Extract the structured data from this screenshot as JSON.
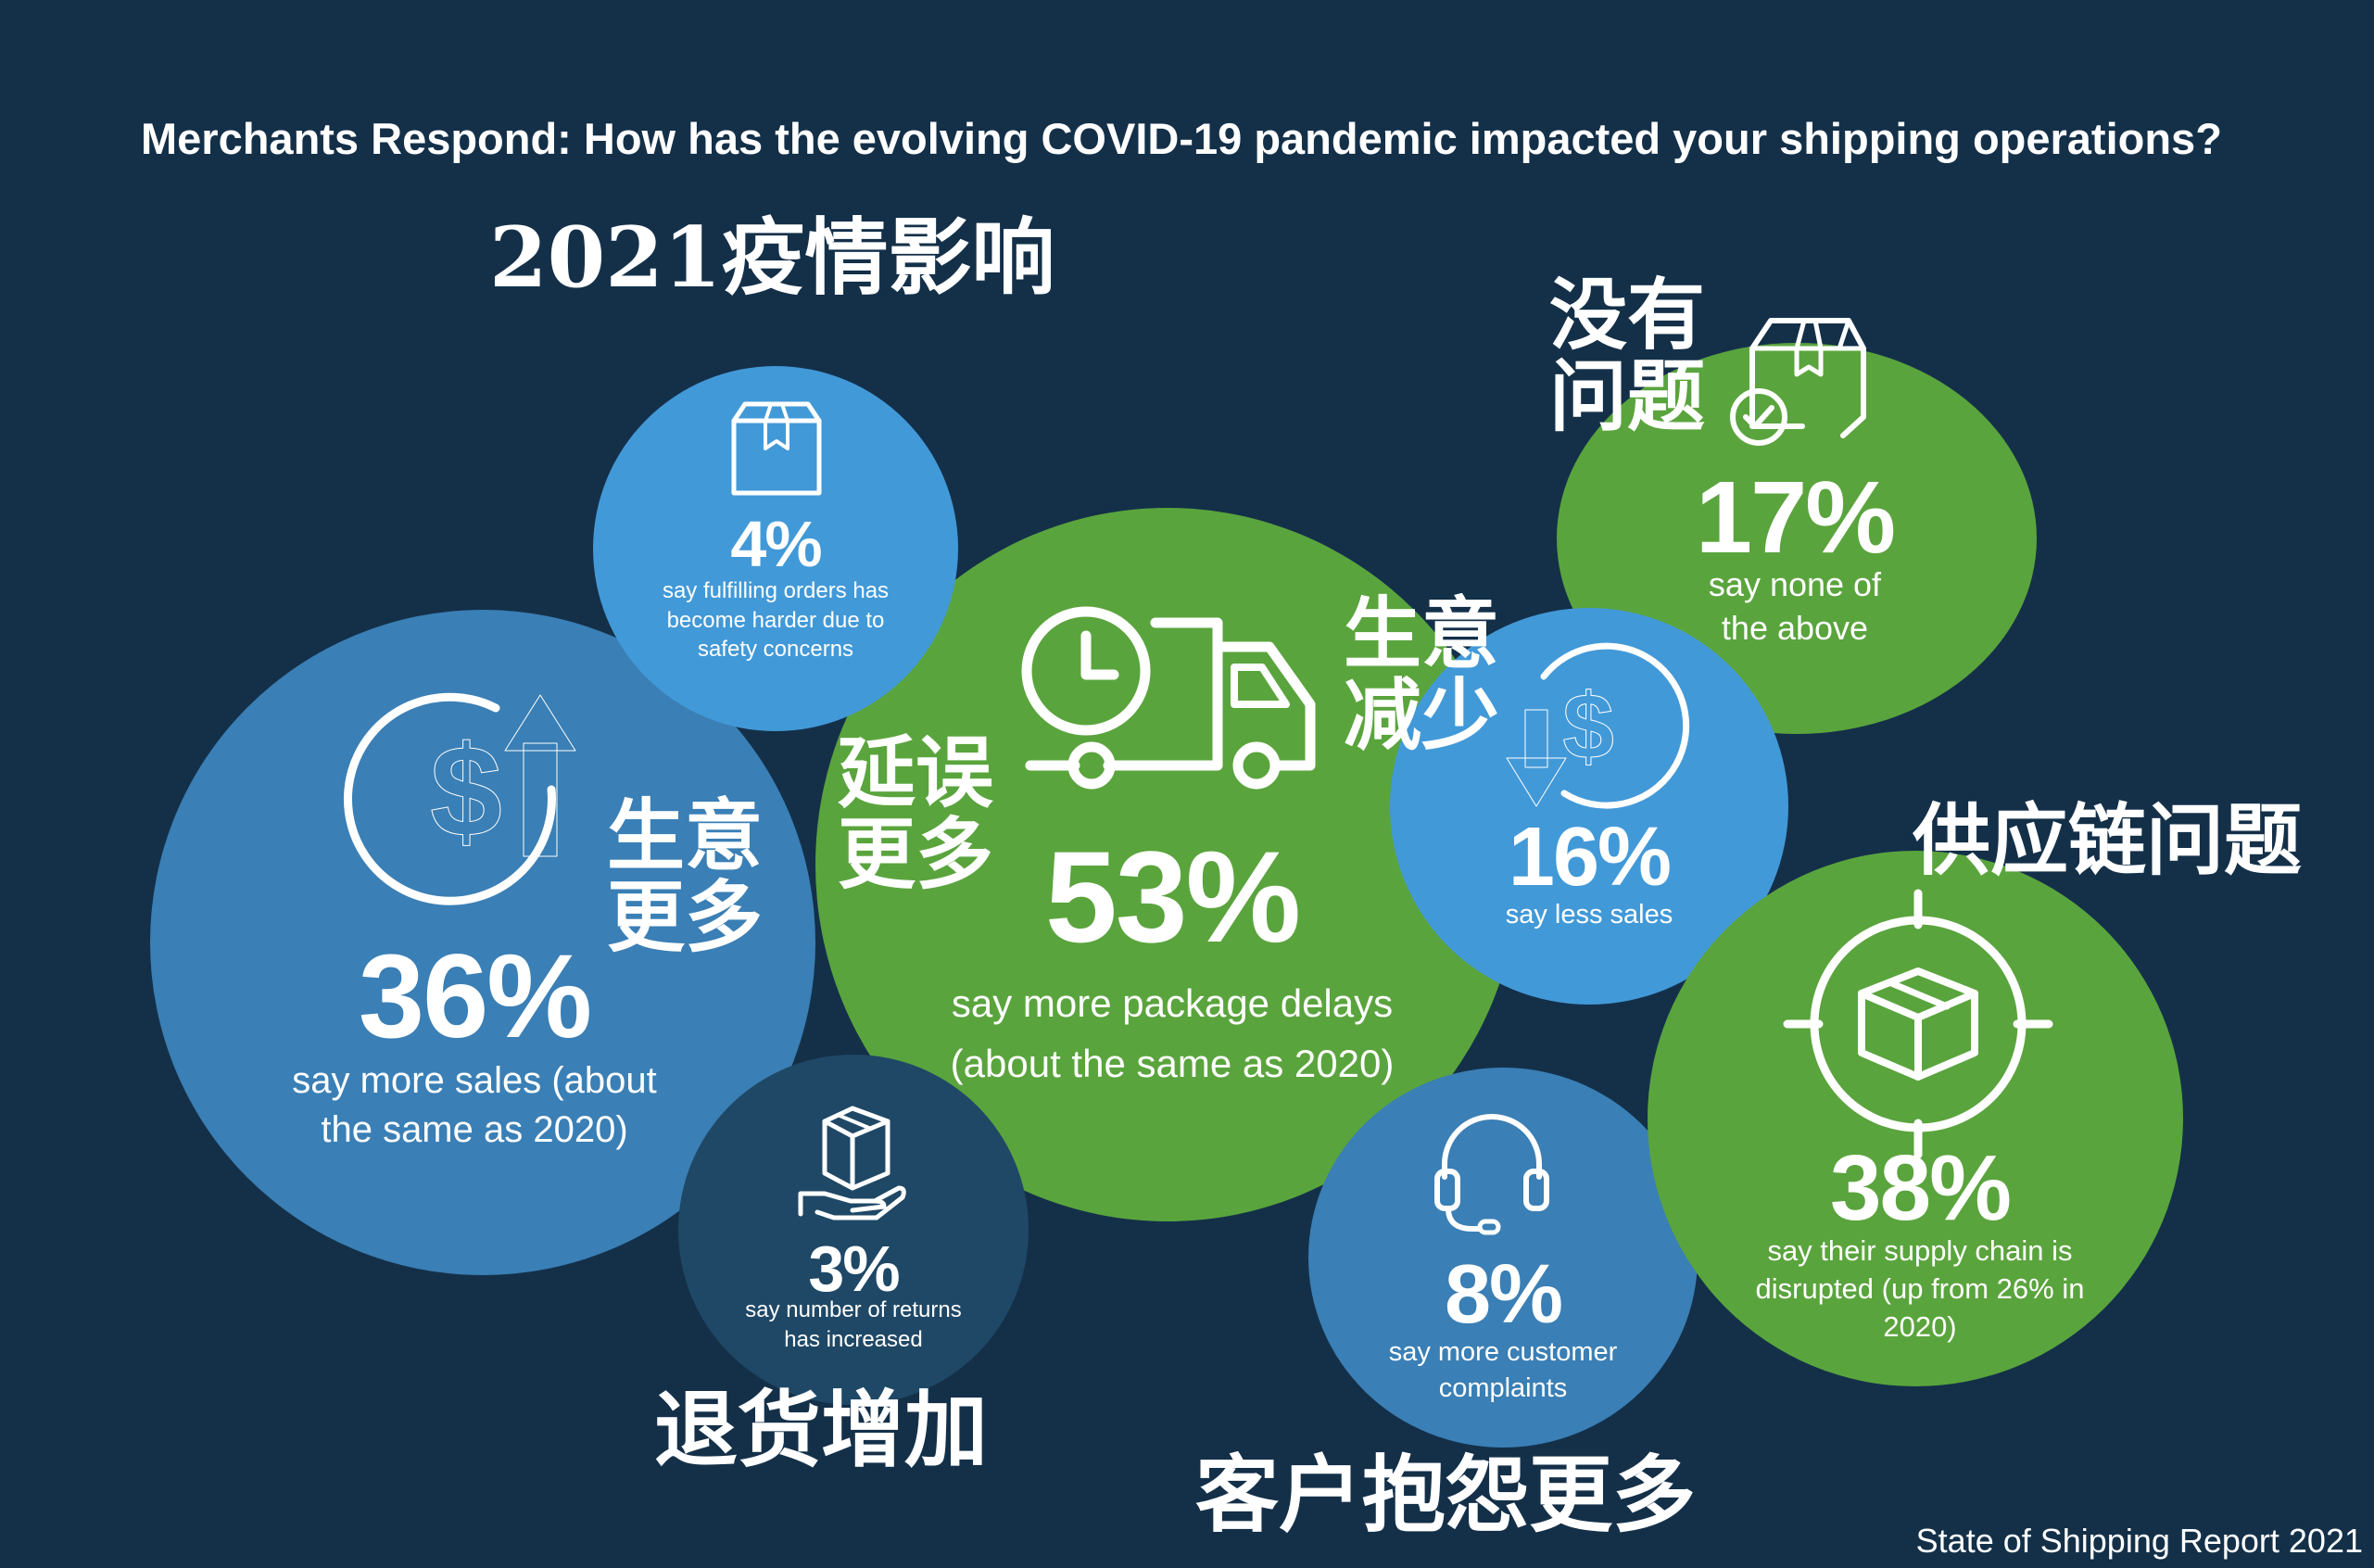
{
  "headline": "Merchants Respond: How has the evolving COVID-19 pandemic impacted your shipping operations?",
  "cn_title": "2021疫情影响",
  "footer": "State of Shipping Report 2021",
  "colors": {
    "background": "#143049",
    "blue_dark": "#3a7fb5",
    "blue_light": "#4299d8",
    "green": "#5aa43d",
    "navy": "#1f4866"
  },
  "stats": {
    "more_sales": {
      "value": "36%",
      "text": "say more sales (about the same as 2020)",
      "label": "生意更多",
      "icon": "dollar-up-arrow-icon"
    },
    "fulfilling_harder": {
      "value": "4%",
      "text": "say fulfilling orders has become harder due to safety concerns",
      "icon": "box-icon"
    },
    "package_delays": {
      "value": "53%",
      "text": "say more package delays (about the same as 2020)",
      "label": "延误更多",
      "icon": "delivery-truck-clock-icon"
    },
    "less_sales": {
      "value": "16%",
      "text": "say less sales",
      "label": "生意减少",
      "icon": "dollar-down-arrow-icon"
    },
    "none": {
      "value": "17%",
      "text": "say none of the above",
      "label": "没有问题",
      "icon": "box-check-icon"
    },
    "supply_chain": {
      "value": "38%",
      "text": "say their supply chain is disrupted (up from 26% in 2020)",
      "label": "供应链问题",
      "icon": "box-target-icon"
    },
    "returns": {
      "value": "3%",
      "text": "say number of returns has increased",
      "label": "退货增加",
      "icon": "hand-box-icon"
    },
    "complaints": {
      "value": "8%",
      "text": "say more customer complaints",
      "label": "客户抱怨更多",
      "icon": "headset-icon"
    }
  }
}
